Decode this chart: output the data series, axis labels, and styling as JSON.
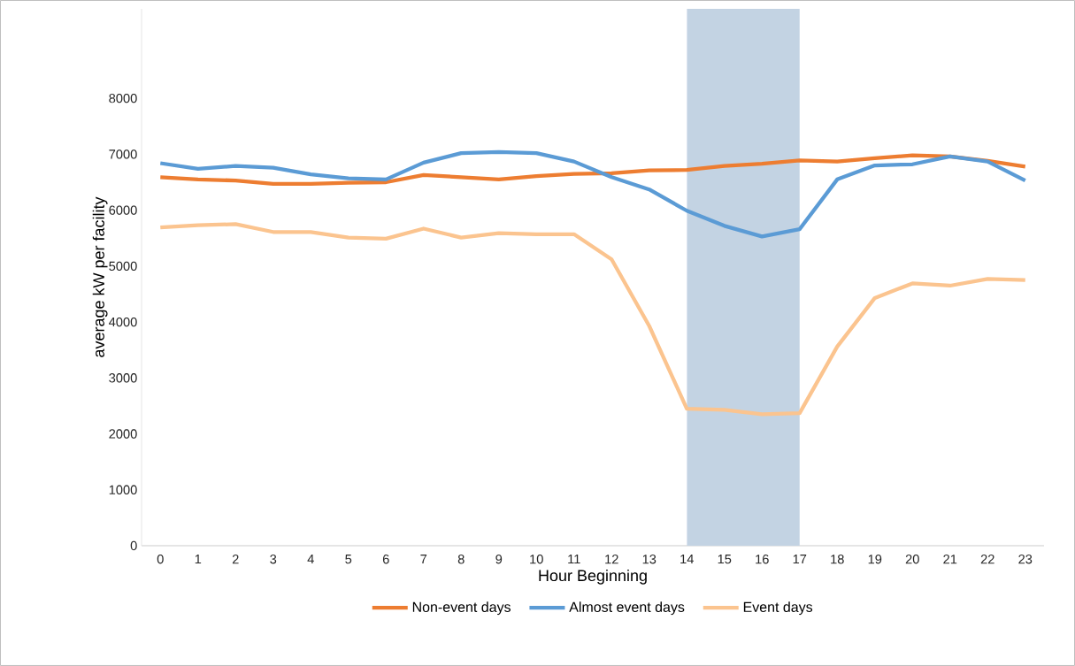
{
  "chart_data": {
    "type": "line",
    "xlabel": "Hour Beginning",
    "ylabel": "average kW per facility",
    "x": [
      0,
      1,
      2,
      3,
      4,
      5,
      6,
      7,
      8,
      9,
      10,
      11,
      12,
      13,
      14,
      15,
      16,
      17,
      18,
      19,
      20,
      21,
      22,
      23
    ],
    "xlim": [
      -0.5,
      23.5
    ],
    "xticks": [
      0,
      1,
      2,
      3,
      4,
      5,
      6,
      7,
      8,
      9,
      10,
      11,
      12,
      13,
      14,
      15,
      16,
      17,
      18,
      19,
      20,
      21,
      22,
      23
    ],
    "ylim": [
      0,
      9600
    ],
    "yticks": [
      0,
      1000,
      2000,
      3000,
      4000,
      5000,
      6000,
      7000,
      8000
    ],
    "series": [
      {
        "name": "Non-event days",
        "color": "#ed7d31",
        "values": [
          6590,
          6550,
          6530,
          6470,
          6470,
          6490,
          6500,
          6630,
          6590,
          6550,
          6610,
          6650,
          6660,
          6710,
          6720,
          6790,
          6830,
          6890,
          6870,
          6930,
          6980,
          6960,
          6880,
          6780
        ]
      },
      {
        "name": "Almost event days",
        "color": "#5b9bd5",
        "values": [
          6840,
          6740,
          6790,
          6760,
          6640,
          6570,
          6550,
          6850,
          7020,
          7040,
          7020,
          6870,
          6590,
          6370,
          5990,
          5720,
          5530,
          5660,
          6550,
          6800,
          6820,
          6960,
          6870,
          6530
        ]
      },
      {
        "name": "Event days",
        "color": "#fbc48f",
        "values": [
          5690,
          5730,
          5750,
          5610,
          5610,
          5510,
          5490,
          5670,
          5510,
          5590,
          5570,
          5570,
          5120,
          3930,
          2450,
          2430,
          2350,
          2370,
          3560,
          4430,
          4690,
          4650,
          4770,
          4750
        ]
      }
    ],
    "bands": [
      {
        "axis": "x",
        "from": 14,
        "to": 17,
        "color": "#c3d3e3"
      }
    ],
    "grid": false,
    "legend": "bottom",
    "marker": "none",
    "line_style": "solid"
  }
}
